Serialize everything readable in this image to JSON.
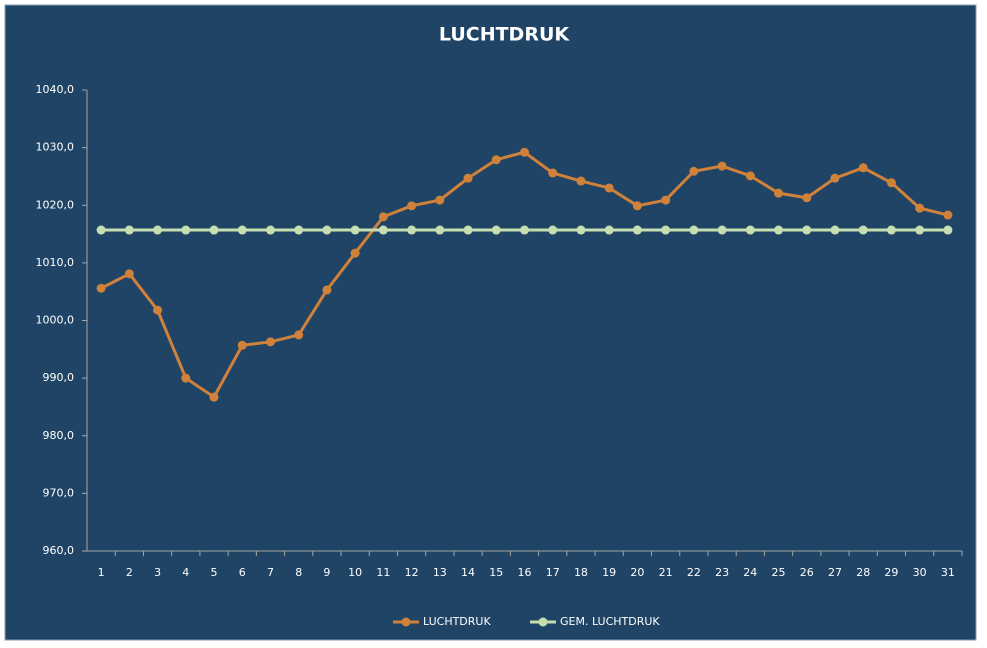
{
  "chart_data": {
    "type": "line",
    "title": "LUCHTDRUK",
    "categories": [
      "1",
      "2",
      "3",
      "4",
      "5",
      "6",
      "7",
      "8",
      "9",
      "10",
      "11",
      "12",
      "13",
      "14",
      "15",
      "16",
      "17",
      "18",
      "19",
      "20",
      "21",
      "22",
      "23",
      "24",
      "25",
      "26",
      "27",
      "28",
      "29",
      "30",
      "31"
    ],
    "series": [
      {
        "name": "LUCHTDRUK",
        "color": "#d0813a",
        "values": [
          1005.6,
          1008.1,
          1001.8,
          990.0,
          986.7,
          995.7,
          996.3,
          997.5,
          1005.3,
          1011.7,
          1018.0,
          1019.9,
          1020.9,
          1024.7,
          1027.9,
          1029.2,
          1025.6,
          1024.2,
          1023.0,
          1019.9,
          1020.9,
          1025.9,
          1026.8,
          1025.1,
          1022.1,
          1021.3,
          1024.7,
          1026.5,
          1023.9,
          1019.5,
          1018.3
        ]
      },
      {
        "name": "GEM. LUCHTDRUK",
        "color": "#c7dfb0",
        "values": [
          1015.7,
          1015.7,
          1015.7,
          1015.7,
          1015.7,
          1015.7,
          1015.7,
          1015.7,
          1015.7,
          1015.7,
          1015.7,
          1015.7,
          1015.7,
          1015.7,
          1015.7,
          1015.7,
          1015.7,
          1015.7,
          1015.7,
          1015.7,
          1015.7,
          1015.7,
          1015.7,
          1015.7,
          1015.7,
          1015.7,
          1015.7,
          1015.7,
          1015.7,
          1015.7,
          1015.7
        ]
      }
    ],
    "ylim": [
      960,
      1040
    ],
    "yticks": [
      {
        "value": 960,
        "label": "960,0"
      },
      {
        "value": 970,
        "label": "970,0"
      },
      {
        "value": 980,
        "label": "980,0"
      },
      {
        "value": 990,
        "label": "990,0"
      },
      {
        "value": 1000,
        "label": "1000,0"
      },
      {
        "value": 1010,
        "label": "1010,0"
      },
      {
        "value": 1020,
        "label": "1020,0"
      },
      {
        "value": 1030,
        "label": "1030,0"
      },
      {
        "value": 1040,
        "label": "1040,0"
      }
    ],
    "grid": false,
    "legend": "bottom"
  }
}
